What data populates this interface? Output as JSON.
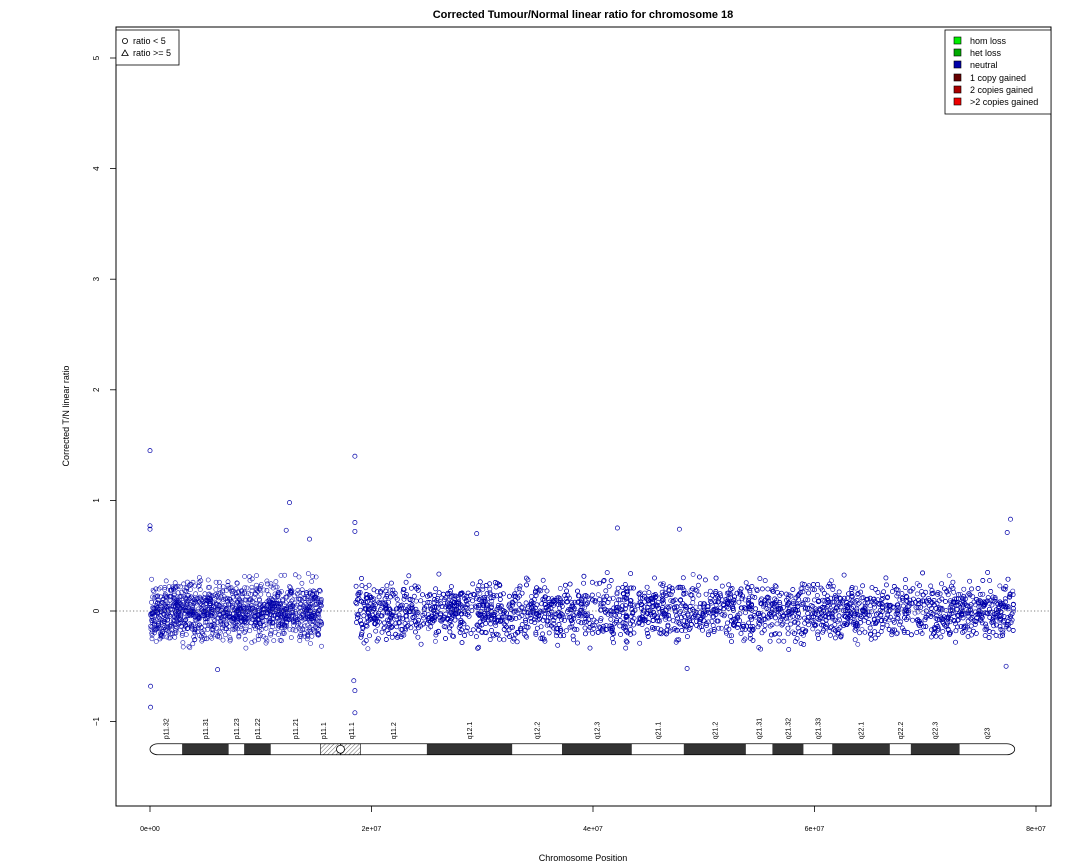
{
  "chart_data": {
    "type": "scatter",
    "title": "Corrected Tumour/Normal linear ratio for chromosome  18",
    "xlabel": "Chromosome Position",
    "ylabel": "Corrected T/N linear ratio",
    "xlim": [
      0,
      80000000
    ],
    "ylim": [
      -1,
      5
    ],
    "x_ticks": [
      0,
      20000000,
      40000000,
      60000000,
      80000000
    ],
    "x_tick_labels": [
      "0e+00",
      "2e+07",
      "4e+07",
      "6e+07",
      "8e+07"
    ],
    "y_ticks": [
      -1,
      0,
      1,
      2,
      3,
      4,
      5
    ],
    "y_tick_labels": [
      "−1",
      "0",
      "1",
      "2",
      "3",
      "4",
      "5"
    ],
    "reference_line_y": 0,
    "series": [
      {
        "state": "neutral",
        "color": "#0000aa",
        "marker": "circle",
        "typical_band": [
          -0.35,
          0.35
        ],
        "segments": [
          {
            "x_range": [
              0,
              15500000
            ],
            "density_ratio": 1.0
          },
          {
            "x_range": [
              18500000,
              78000000
            ],
            "density_ratio": 1.0
          }
        ],
        "notable_points": [
          {
            "x": 0,
            "y": 1.45
          },
          {
            "x": 0,
            "y": 0.77
          },
          {
            "x": 0,
            "y": 0.74
          },
          {
            "x": 50000,
            "y": -0.87
          },
          {
            "x": 50000,
            "y": -0.68
          },
          {
            "x": 6100000,
            "y": -0.53
          },
          {
            "x": 12600000,
            "y": 0.98
          },
          {
            "x": 12300000,
            "y": 0.73
          },
          {
            "x": 14400000,
            "y": 0.65
          },
          {
            "x": 18500000,
            "y": 1.4
          },
          {
            "x": 18500000,
            "y": 0.8
          },
          {
            "x": 18500000,
            "y": 0.72
          },
          {
            "x": 18500000,
            "y": -0.72
          },
          {
            "x": 18500000,
            "y": -0.92
          },
          {
            "x": 18400000,
            "y": -0.63
          },
          {
            "x": 29500000,
            "y": 0.7
          },
          {
            "x": 42200000,
            "y": 0.75
          },
          {
            "x": 47800000,
            "y": 0.74
          },
          {
            "x": 48500000,
            "y": -0.52
          },
          {
            "x": 77700000,
            "y": 0.83
          },
          {
            "x": 77400000,
            "y": 0.71
          },
          {
            "x": 77300000,
            "y": -0.5
          }
        ]
      }
    ],
    "legend_shape": {
      "position": "top-left",
      "items": [
        {
          "label": "ratio < 5",
          "marker": "circle"
        },
        {
          "label": "ratio >= 5",
          "marker": "triangle"
        }
      ]
    },
    "legend_state": {
      "position": "top-right",
      "items": [
        {
          "label": "hom loss",
          "color": "#00ee00"
        },
        {
          "label": "het loss",
          "color": "#00aa00"
        },
        {
          "label": "neutral",
          "color": "#0000aa"
        },
        {
          "label": "1 copy gained",
          "color": "#660000"
        },
        {
          "label": "2 copies gained",
          "color": "#aa0000"
        },
        {
          "label": ">2 copies gained",
          "color": "#ee0000"
        }
      ]
    },
    "ideogram": {
      "y": -1.25,
      "centromere": 17200000,
      "bands": [
        {
          "name": "p11.32",
          "start": 0,
          "end": 2900000,
          "stain": "white"
        },
        {
          "name": "p11.31",
          "start": 2900000,
          "end": 7100000,
          "stain": "dark"
        },
        {
          "name": "p11.23",
          "start": 7100000,
          "end": 8500000,
          "stain": "white"
        },
        {
          "name": "p11.22",
          "start": 8500000,
          "end": 10900000,
          "stain": "dark"
        },
        {
          "name": "p11.21",
          "start": 10900000,
          "end": 15400000,
          "stain": "white"
        },
        {
          "name": "p11.1",
          "start": 15400000,
          "end": 17200000,
          "stain": "acen"
        },
        {
          "name": "q11.1",
          "start": 17200000,
          "end": 19000000,
          "stain": "acen"
        },
        {
          "name": "q11.2",
          "start": 19000000,
          "end": 25000000,
          "stain": "white"
        },
        {
          "name": "q12.1",
          "start": 25000000,
          "end": 32700000,
          "stain": "dark"
        },
        {
          "name": "q12.2",
          "start": 32700000,
          "end": 37200000,
          "stain": "white"
        },
        {
          "name": "q12.3",
          "start": 37200000,
          "end": 43500000,
          "stain": "dark"
        },
        {
          "name": "q21.1",
          "start": 43500000,
          "end": 48200000,
          "stain": "white"
        },
        {
          "name": "q21.2",
          "start": 48200000,
          "end": 53800000,
          "stain": "dark"
        },
        {
          "name": "q21.31",
          "start": 53800000,
          "end": 56200000,
          "stain": "white"
        },
        {
          "name": "q21.32",
          "start": 56200000,
          "end": 59000000,
          "stain": "dark"
        },
        {
          "name": "q21.33",
          "start": 59000000,
          "end": 61600000,
          "stain": "white"
        },
        {
          "name": "q22.1",
          "start": 61600000,
          "end": 66800000,
          "stain": "dark"
        },
        {
          "name": "q22.2",
          "start": 66800000,
          "end": 68700000,
          "stain": "white"
        },
        {
          "name": "q22.3",
          "start": 68700000,
          "end": 73100000,
          "stain": "dark"
        },
        {
          "name": "q23",
          "start": 73100000,
          "end": 78077248,
          "stain": "white"
        }
      ]
    }
  }
}
